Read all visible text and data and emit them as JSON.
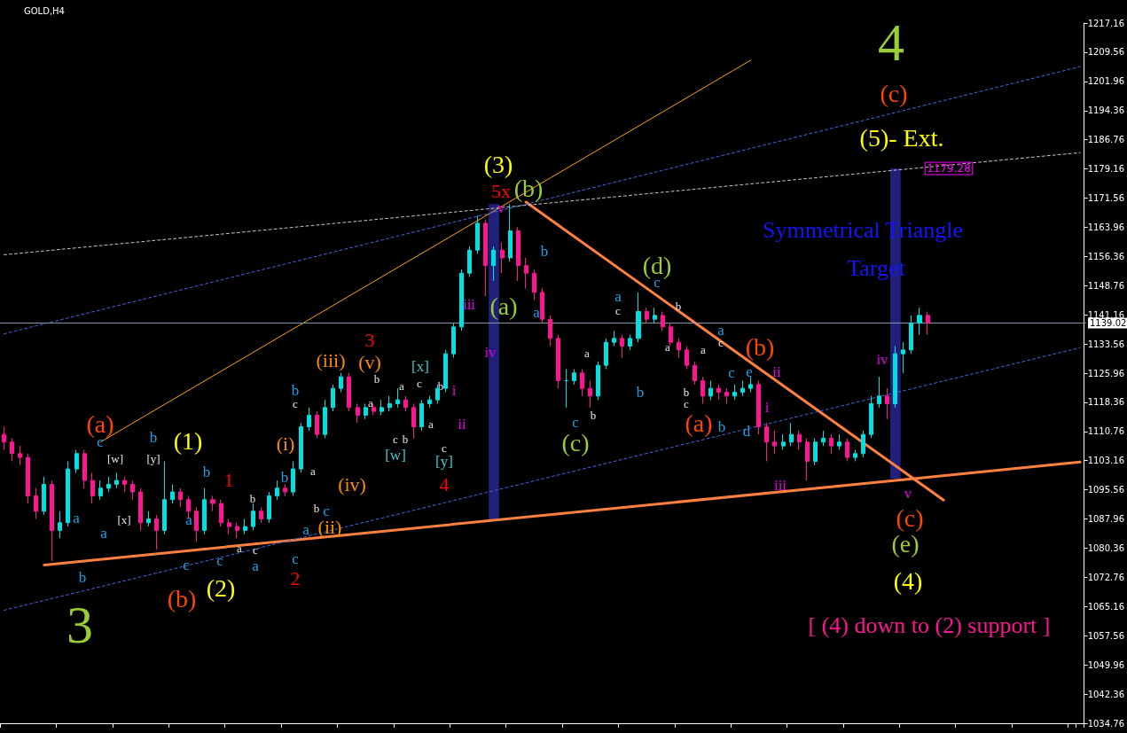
{
  "chart_data": {
    "type": "candlestick",
    "title": "GOLD,H4",
    "categories": [
      null,
      null,
      null,
      null,
      null,
      null,
      null,
      null,
      null,
      null,
      null,
      null,
      null,
      null,
      null,
      null,
      null,
      null,
      null,
      null,
      null,
      null,
      null,
      null,
      null,
      null,
      null,
      null,
      null,
      null,
      null,
      null,
      null,
      null,
      null,
      null,
      null,
      null,
      null,
      null,
      null,
      null,
      null,
      null,
      null,
      null,
      null,
      null,
      null,
      null,
      null,
      null,
      null,
      null,
      null,
      null,
      null,
      null,
      null,
      null,
      null,
      null,
      null,
      null,
      null,
      null,
      null,
      null,
      null,
      null,
      null,
      null,
      null,
      null,
      null,
      null,
      null,
      null,
      null,
      null,
      null,
      null,
      null,
      null,
      null,
      null,
      null,
      null,
      null,
      null,
      null,
      null,
      null,
      null,
      null,
      null,
      null,
      null,
      null,
      null,
      null,
      null,
      null,
      null,
      null,
      null,
      null,
      null,
      null,
      null,
      null,
      null,
      null,
      null,
      null,
      null,
      null,
      null,
      null,
      null,
      null,
      null,
      null,
      null,
      null,
      null,
      null,
      null,
      null,
      null,
      null,
      null,
      null,
      null,
      null
    ],
    "ohlc": [
      [
        1110,
        1112,
        1106,
        1108
      ],
      [
        1108,
        1109,
        1103,
        1105
      ],
      [
        1105,
        1107,
        1102,
        1104
      ],
      [
        1104,
        1105,
        1092,
        1094
      ],
      [
        1094,
        1096,
        1088,
        1090
      ],
      [
        1090,
        1099,
        1089,
        1097
      ],
      [
        1097,
        1098,
        1077,
        1085
      ],
      [
        1085,
        1090,
        1083,
        1087
      ],
      [
        1087,
        1103,
        1086,
        1101
      ],
      [
        1101,
        1106,
        1100,
        1105
      ],
      [
        1105,
        1106,
        1096,
        1098
      ],
      [
        1098,
        1100,
        1092,
        1094
      ],
      [
        1094,
        1098,
        1093,
        1096
      ],
      [
        1096,
        1099,
        1095,
        1097
      ],
      [
        1097,
        1100,
        1096,
        1098
      ],
      [
        1098,
        1099,
        1095,
        1097
      ],
      [
        1097,
        1098,
        1093,
        1095
      ],
      [
        1095,
        1096,
        1085,
        1087
      ],
      [
        1087,
        1090,
        1086,
        1088
      ],
      [
        1088,
        1089,
        1080,
        1085
      ],
      [
        1085,
        1103,
        1084,
        1093
      ],
      [
        1093,
        1097,
        1092,
        1095
      ],
      [
        1095,
        1096,
        1091,
        1093
      ],
      [
        1093,
        1094,
        1088,
        1090
      ],
      [
        1090,
        1091,
        1082,
        1085
      ],
      [
        1085,
        1096,
        1084,
        1093
      ],
      [
        1093,
        1094,
        1090,
        1092
      ],
      [
        1092,
        1093,
        1086,
        1087
      ],
      [
        1087,
        1088,
        1084,
        1086
      ],
      [
        1086,
        1087,
        1083,
        1085
      ],
      [
        1085,
        1088,
        1084,
        1086
      ],
      [
        1086,
        1092,
        1085,
        1090
      ],
      [
        1090,
        1091,
        1087,
        1088
      ],
      [
        1088,
        1095,
        1087,
        1094
      ],
      [
        1094,
        1098,
        1093,
        1096
      ],
      [
        1096,
        1097,
        1094,
        1095
      ],
      [
        1095,
        1103,
        1094,
        1101
      ],
      [
        1101,
        1113,
        1100,
        1112
      ],
      [
        1112,
        1117,
        1111,
        1115
      ],
      [
        1115,
        1116,
        1109,
        1110
      ],
      [
        1110,
        1119,
        1109,
        1117
      ],
      [
        1117,
        1123,
        1116,
        1122
      ],
      [
        1122,
        1126,
        1121,
        1125
      ],
      [
        1125,
        1126,
        1116,
        1117
      ],
      [
        1117,
        1118,
        1113,
        1115
      ],
      [
        1115,
        1118,
        1114,
        1117
      ],
      [
        1117,
        1118,
        1115,
        1116
      ],
      [
        1116,
        1119,
        1115,
        1117
      ],
      [
        1117,
        1120,
        1116,
        1118
      ],
      [
        1118,
        1122,
        1117,
        1119
      ],
      [
        1119,
        1120,
        1116,
        1117
      ],
      [
        1117,
        1118,
        1109,
        1112
      ],
      [
        1112,
        1119,
        1111,
        1118
      ],
      [
        1118,
        1120,
        1117,
        1119
      ],
      [
        1119,
        1123,
        1118,
        1122
      ],
      [
        1122,
        1132,
        1121,
        1131
      ],
      [
        1131,
        1139,
        1130,
        1138
      ],
      [
        1138,
        1153,
        1137,
        1152
      ],
      [
        1152,
        1159,
        1151,
        1158
      ],
      [
        1158,
        1167,
        1157,
        1165
      ],
      [
        1165,
        1166,
        1146,
        1154
      ],
      [
        1154,
        1159,
        1150,
        1158
      ],
      [
        1158,
        1160,
        1152,
        1156
      ],
      [
        1156,
        1170,
        1155,
        1163
      ],
      [
        1163,
        1164,
        1150,
        1154
      ],
      [
        1154,
        1156,
        1148,
        1152
      ],
      [
        1152,
        1153,
        1145,
        1147
      ],
      [
        1147,
        1148,
        1139,
        1140
      ],
      [
        1140,
        1141,
        1133,
        1135
      ],
      [
        1135,
        1136,
        1122,
        1124
      ],
      [
        1124,
        1127,
        1117,
        1124
      ],
      [
        1124,
        1127,
        1123,
        1126
      ],
      [
        1126,
        1127,
        1120,
        1122
      ],
      [
        1122,
        1124,
        1117,
        1120
      ],
      [
        1120,
        1129,
        1119,
        1128
      ],
      [
        1128,
        1135,
        1127,
        1134
      ],
      [
        1134,
        1137,
        1133,
        1135
      ],
      [
        1135,
        1136,
        1130,
        1133
      ],
      [
        1133,
        1136,
        1132,
        1135
      ],
      [
        1135,
        1147,
        1134,
        1142
      ],
      [
        1142,
        1143,
        1139,
        1140
      ],
      [
        1140,
        1143,
        1139,
        1141
      ],
      [
        1141,
        1142,
        1137,
        1138
      ],
      [
        1138,
        1139,
        1133,
        1134
      ],
      [
        1134,
        1135,
        1130,
        1132
      ],
      [
        1132,
        1133,
        1127,
        1128
      ],
      [
        1128,
        1129,
        1123,
        1124
      ],
      [
        1124,
        1125,
        1118,
        1120
      ],
      [
        1120,
        1124,
        1119,
        1122
      ],
      [
        1122,
        1123,
        1119,
        1121
      ],
      [
        1121,
        1122,
        1118,
        1120
      ],
      [
        1120,
        1123,
        1119,
        1121
      ],
      [
        1121,
        1124,
        1120,
        1122
      ],
      [
        1122,
        1125,
        1121,
        1123
      ],
      [
        1123,
        1124,
        1110,
        1112
      ],
      [
        1112,
        1113,
        1103,
        1108
      ],
      [
        1108,
        1111,
        1105,
        1107
      ],
      [
        1107,
        1110,
        1106,
        1108
      ],
      [
        1108,
        1113,
        1107,
        1110
      ],
      [
        1110,
        1111,
        1106,
        1108
      ],
      [
        1108,
        1109,
        1098,
        1103
      ],
      [
        1103,
        1109,
        1102,
        1108
      ],
      [
        1108,
        1111,
        1107,
        1109
      ],
      [
        1109,
        1110,
        1105,
        1107
      ],
      [
        1107,
        1110,
        1106,
        1108
      ],
      [
        1108,
        1109,
        1103,
        1104
      ],
      [
        1104,
        1106,
        1103,
        1105
      ],
      [
        1105,
        1111,
        1104,
        1110
      ],
      [
        1110,
        1120,
        1109,
        1118
      ],
      [
        1118,
        1125,
        1117,
        1120
      ],
      [
        1120,
        1122,
        1114,
        1118
      ],
      [
        1118,
        1133,
        1117,
        1131
      ],
      [
        1131,
        1134,
        1126,
        1132
      ],
      [
        1132,
        1141,
        1131,
        1139
      ],
      [
        1139,
        1143,
        1136,
        1141
      ],
      [
        1141,
        1142,
        1136,
        1139
      ],
      null,
      null,
      null,
      null,
      null,
      null,
      null,
      null,
      null,
      null,
      null,
      null,
      null,
      null,
      null,
      null,
      null,
      null,
      null
    ],
    "series": [
      {
        "type": "line",
        "color": "#ff8040",
        "line_style": "solid",
        "values": [
          null,
          null,
          null,
          null,
          null,
          1076,
          null,
          null,
          null,
          null,
          null,
          null,
          null,
          null,
          null,
          null,
          null,
          null,
          null,
          null,
          null,
          null,
          null,
          null,
          null,
          null,
          null,
          null,
          null,
          null,
          null,
          null,
          null,
          null,
          null,
          null,
          null,
          null,
          null,
          null,
          null,
          null,
          null,
          null,
          null,
          null,
          null,
          null,
          null,
          null,
          null,
          null,
          null,
          null,
          null,
          null,
          null,
          null,
          null,
          null,
          null,
          null,
          null,
          null,
          null,
          null,
          null,
          null,
          null,
          null,
          null,
          null,
          null,
          null,
          null,
          null,
          null,
          null,
          null,
          null,
          null,
          null,
          null,
          null,
          null,
          null,
          null,
          null,
          null,
          null,
          null,
          null,
          null,
          null,
          null,
          null,
          null,
          null,
          null,
          null,
          null,
          null,
          null,
          null,
          null,
          null,
          null,
          null,
          null,
          null,
          null,
          null,
          null,
          null,
          null,
          null,
          null,
          null,
          null,
          null,
          null,
          null,
          null,
          null,
          null,
          null,
          null,
          null,
          null,
          null,
          null,
          null,
          null,
          null,
          1102.8
        ]
      },
      {
        "type": "line",
        "color": "#ff8040",
        "line_style": "solid",
        "values": [
          null,
          null,
          null,
          null,
          null,
          null,
          null,
          null,
          null,
          null,
          null,
          null,
          null,
          null,
          null,
          null,
          null,
          null,
          null,
          null,
          null,
          null,
          null,
          null,
          null,
          null,
          null,
          null,
          null,
          null,
          null,
          null,
          null,
          null,
          null,
          null,
          null,
          null,
          null,
          null,
          null,
          null,
          null,
          null,
          null,
          null,
          null,
          null,
          null,
          null,
          null,
          null,
          null,
          null,
          null,
          null,
          null,
          null,
          null,
          null,
          null,
          null,
          null,
          null,
          null,
          1170.5,
          null,
          null,
          null,
          null,
          null,
          null,
          null,
          null,
          null,
          null,
          null,
          null,
          null,
          null,
          null,
          null,
          null,
          null,
          null,
          null,
          null,
          null,
          null,
          null,
          null,
          null,
          null,
          null,
          null,
          null,
          null,
          null,
          null,
          null,
          null,
          null,
          null,
          null,
          null,
          null,
          null,
          null,
          null,
          null,
          null,
          null,
          null,
          null,
          null,
          null,
          null,
          1092.9,
          null,
          null,
          null,
          null,
          null,
          null,
          null,
          null,
          null,
          null,
          null,
          null,
          null,
          null,
          null,
          null,
          null
        ]
      },
      {
        "type": "line",
        "color": "#ffa500",
        "line_style": "solid",
        "values": [
          null,
          null,
          null,
          null,
          null,
          null,
          null,
          null,
          null,
          null,
          null,
          null,
          1108,
          null,
          null,
          null,
          null,
          null,
          null,
          null,
          null,
          null,
          null,
          null,
          null,
          null,
          null,
          null,
          null,
          null,
          null,
          null,
          null,
          null,
          null,
          null,
          null,
          null,
          null,
          null,
          null,
          null,
          null,
          null,
          null,
          null,
          null,
          null,
          null,
          null,
          null,
          null,
          null,
          null,
          null,
          null,
          null,
          null,
          null,
          null,
          null,
          null,
          null,
          null,
          null,
          null,
          null,
          null,
          null,
          null,
          null,
          null,
          null,
          null,
          null,
          null,
          null,
          null,
          null,
          null,
          null,
          null,
          null,
          null,
          null,
          null,
          null,
          null,
          null,
          null,
          null,
          null,
          null,
          1207.5,
          null,
          null,
          null,
          null,
          null,
          null,
          null,
          null,
          null,
          null,
          null,
          null,
          null,
          null,
          null,
          null,
          null,
          null,
          null,
          null,
          null,
          null,
          null,
          null,
          null,
          null,
          null,
          null,
          null,
          null,
          null,
          null,
          null,
          null,
          null,
          null,
          null,
          null,
          null,
          null,
          null
        ]
      },
      {
        "type": "line",
        "color": "#4169e1",
        "line_style": "dashed",
        "values": [
          1064.2,
          null,
          null,
          null,
          null,
          null,
          null,
          null,
          null,
          null,
          null,
          null,
          null,
          null,
          null,
          null,
          null,
          null,
          null,
          null,
          null,
          null,
          null,
          null,
          null,
          null,
          null,
          null,
          null,
          null,
          null,
          null,
          null,
          null,
          null,
          null,
          null,
          null,
          null,
          null,
          null,
          null,
          null,
          null,
          null,
          null,
          null,
          null,
          null,
          null,
          null,
          null,
          null,
          null,
          null,
          null,
          null,
          null,
          null,
          null,
          null,
          null,
          null,
          null,
          null,
          null,
          null,
          null,
          null,
          null,
          null,
          null,
          null,
          null,
          null,
          null,
          null,
          null,
          null,
          null,
          null,
          null,
          null,
          null,
          null,
          null,
          null,
          null,
          null,
          null,
          null,
          null,
          null,
          null,
          null,
          null,
          null,
          null,
          null,
          null,
          null,
          null,
          null,
          null,
          null,
          null,
          null,
          null,
          null,
          null,
          null,
          null,
          null,
          null,
          null,
          null,
          null,
          null,
          null,
          null,
          null,
          null,
          null,
          null,
          null,
          null,
          null,
          null,
          null,
          null,
          null,
          null,
          null,
          null,
          1132.6
        ]
      },
      {
        "type": "line",
        "color": "#4169e1",
        "line_style": "dashed",
        "values": [
          1136.2,
          null,
          null,
          null,
          null,
          null,
          null,
          null,
          null,
          null,
          null,
          null,
          null,
          null,
          null,
          null,
          null,
          null,
          null,
          null,
          null,
          null,
          null,
          null,
          null,
          null,
          null,
          null,
          null,
          null,
          null,
          null,
          null,
          null,
          null,
          null,
          null,
          null,
          null,
          null,
          null,
          null,
          null,
          null,
          null,
          null,
          null,
          null,
          null,
          null,
          null,
          null,
          null,
          null,
          null,
          null,
          null,
          null,
          null,
          null,
          null,
          null,
          null,
          null,
          null,
          null,
          null,
          null,
          null,
          null,
          null,
          null,
          null,
          null,
          null,
          null,
          null,
          null,
          null,
          null,
          null,
          null,
          null,
          null,
          null,
          null,
          null,
          null,
          null,
          null,
          null,
          null,
          null,
          null,
          null,
          null,
          null,
          null,
          null,
          null,
          null,
          null,
          null,
          null,
          null,
          null,
          null,
          null,
          null,
          null,
          null,
          null,
          null,
          null,
          null,
          null,
          null,
          null,
          null,
          null,
          null,
          null,
          null,
          null,
          null,
          null,
          null,
          null,
          null,
          null,
          null,
          null,
          null,
          null,
          1205.8
        ]
      },
      {
        "type": "line",
        "color": "#c8c8c8",
        "line_style": "dashed",
        "values": [
          1156.8,
          null,
          null,
          null,
          null,
          null,
          null,
          null,
          null,
          null,
          null,
          null,
          null,
          null,
          null,
          null,
          null,
          null,
          null,
          null,
          null,
          null,
          null,
          null,
          null,
          null,
          null,
          null,
          null,
          null,
          null,
          null,
          null,
          null,
          null,
          null,
          null,
          null,
          null,
          null,
          null,
          null,
          null,
          null,
          null,
          null,
          null,
          null,
          null,
          null,
          null,
          null,
          null,
          null,
          null,
          null,
          null,
          null,
          null,
          null,
          null,
          null,
          null,
          null,
          null,
          null,
          null,
          null,
          null,
          null,
          null,
          null,
          null,
          null,
          null,
          null,
          null,
          null,
          null,
          null,
          null,
          null,
          null,
          null,
          null,
          null,
          null,
          null,
          null,
          null,
          null,
          null,
          null,
          null,
          null,
          null,
          null,
          null,
          null,
          null,
          null,
          null,
          null,
          null,
          null,
          null,
          null,
          null,
          null,
          null,
          null,
          null,
          null,
          null,
          null,
          null,
          null,
          null,
          null,
          null,
          null,
          null,
          null,
          null,
          null,
          null,
          null,
          null,
          null,
          null,
          null,
          null,
          null,
          null,
          1183.4
        ]
      },
      {
        "type": "bar",
        "color": "#20207a",
        "base": [
          null,
          null,
          null,
          null,
          null,
          null,
          null,
          null,
          null,
          null,
          null,
          null,
          null,
          null,
          null,
          null,
          null,
          null,
          null,
          null,
          null,
          null,
          null,
          null,
          null,
          null,
          null,
          null,
          null,
          null,
          null,
          null,
          null,
          null,
          null,
          null,
          null,
          null,
          null,
          null,
          null,
          null,
          null,
          null,
          null,
          null,
          null,
          null,
          null,
          null,
          null,
          null,
          null,
          null,
          null,
          null,
          null,
          null,
          null,
          null,
          null,
          1087.5,
          null,
          null,
          null,
          null,
          null,
          null,
          null,
          null,
          null,
          null,
          null,
          null,
          null,
          null,
          null,
          null,
          null,
          null,
          null,
          null,
          null,
          null,
          null,
          null,
          null,
          null,
          null,
          null,
          null,
          null,
          null,
          null,
          null,
          null,
          null,
          null,
          null,
          null,
          null,
          null,
          null,
          null,
          null,
          null,
          null,
          null,
          null,
          null,
          null,
          1098.5,
          null,
          null,
          null,
          null,
          null,
          null,
          null,
          null,
          null,
          null,
          null,
          null,
          null,
          null,
          null,
          null,
          null,
          null,
          null,
          null,
          null,
          null,
          null
        ],
        "values": [
          null,
          null,
          null,
          null,
          null,
          null,
          null,
          null,
          null,
          null,
          null,
          null,
          null,
          null,
          null,
          null,
          null,
          null,
          null,
          null,
          null,
          null,
          null,
          null,
          null,
          null,
          null,
          null,
          null,
          null,
          null,
          null,
          null,
          null,
          null,
          null,
          null,
          null,
          null,
          null,
          null,
          null,
          null,
          null,
          null,
          null,
          null,
          null,
          null,
          null,
          null,
          null,
          null,
          null,
          null,
          null,
          null,
          null,
          null,
          null,
          null,
          82.5,
          null,
          null,
          null,
          null,
          null,
          null,
          null,
          null,
          null,
          null,
          null,
          null,
          null,
          null,
          null,
          null,
          null,
          null,
          null,
          null,
          null,
          null,
          null,
          null,
          null,
          null,
          null,
          null,
          null,
          null,
          null,
          null,
          null,
          null,
          null,
          null,
          null,
          null,
          null,
          null,
          null,
          null,
          null,
          null,
          null,
          null,
          null,
          null,
          null,
          80.78,
          null,
          null,
          null,
          null,
          null,
          null,
          null,
          null,
          null,
          null,
          null,
          null,
          null,
          null,
          null,
          null,
          null,
          null,
          null,
          null,
          null,
          null,
          null
        ]
      }
    ],
    "ylim": [
      1034.76,
      1217.16
    ],
    "yticks": [
      1034.76,
      1042.36,
      1049.96,
      1057.56,
      1065.16,
      1072.76,
      1080.36,
      1087.96,
      1095.56,
      1103.16,
      1110.76,
      1118.36,
      1125.96,
      1133.56,
      1141.16,
      1148.76,
      1156.36,
      1163.96,
      1171.56,
      1179.16,
      1186.76,
      1194.36,
      1201.96,
      1209.56,
      1217.16
    ],
    "tick_labels": "y",
    "ref_lines": [
      {
        "axis": "y",
        "value": 1139.02,
        "label": "1139.02",
        "color": "#8c9cb0"
      }
    ],
    "annotations": [
      "3",
      "4",
      "(c)",
      "(5)- Ext.",
      "Symmetrical Triangle",
      "Target",
      {
        "text": "1179.28",
        "y": 1179.28
      },
      "[ (4) down to (2) support ]",
      "(a)",
      "c",
      "b",
      "(1)",
      "[w]",
      "[y]",
      "[x]",
      "a",
      "a",
      "b",
      "b",
      "1",
      "a",
      "b",
      "c",
      "c",
      "a",
      "c",
      "a",
      "(b)",
      "(2)",
      "b",
      "(i)",
      "a",
      "b",
      "c",
      "a",
      "(ii)",
      "c",
      "2",
      "b",
      "c",
      "(iii)",
      "(iv)",
      "3",
      "(v)",
      "b",
      "a",
      "a",
      "c",
      "[x]",
      "b",
      "i",
      "a",
      "c",
      "b",
      "[w]",
      "ii",
      "c",
      "[y]",
      "4",
      "5x",
      "(3)",
      "v",
      "(b)",
      "iii",
      "(a)",
      "iv",
      "b",
      "a",
      "(d)",
      "c",
      "a",
      "c",
      "b",
      "a",
      "b",
      "a",
      "b",
      "c",
      "(c)",
      "a",
      "c",
      "a",
      "c",
      "(b)",
      "e",
      "ii",
      "b",
      "c",
      "(a)",
      "b",
      "d",
      "i",
      "iii",
      "iv",
      "v",
      "(c)",
      "(e)",
      "(4)"
    ]
  }
}
